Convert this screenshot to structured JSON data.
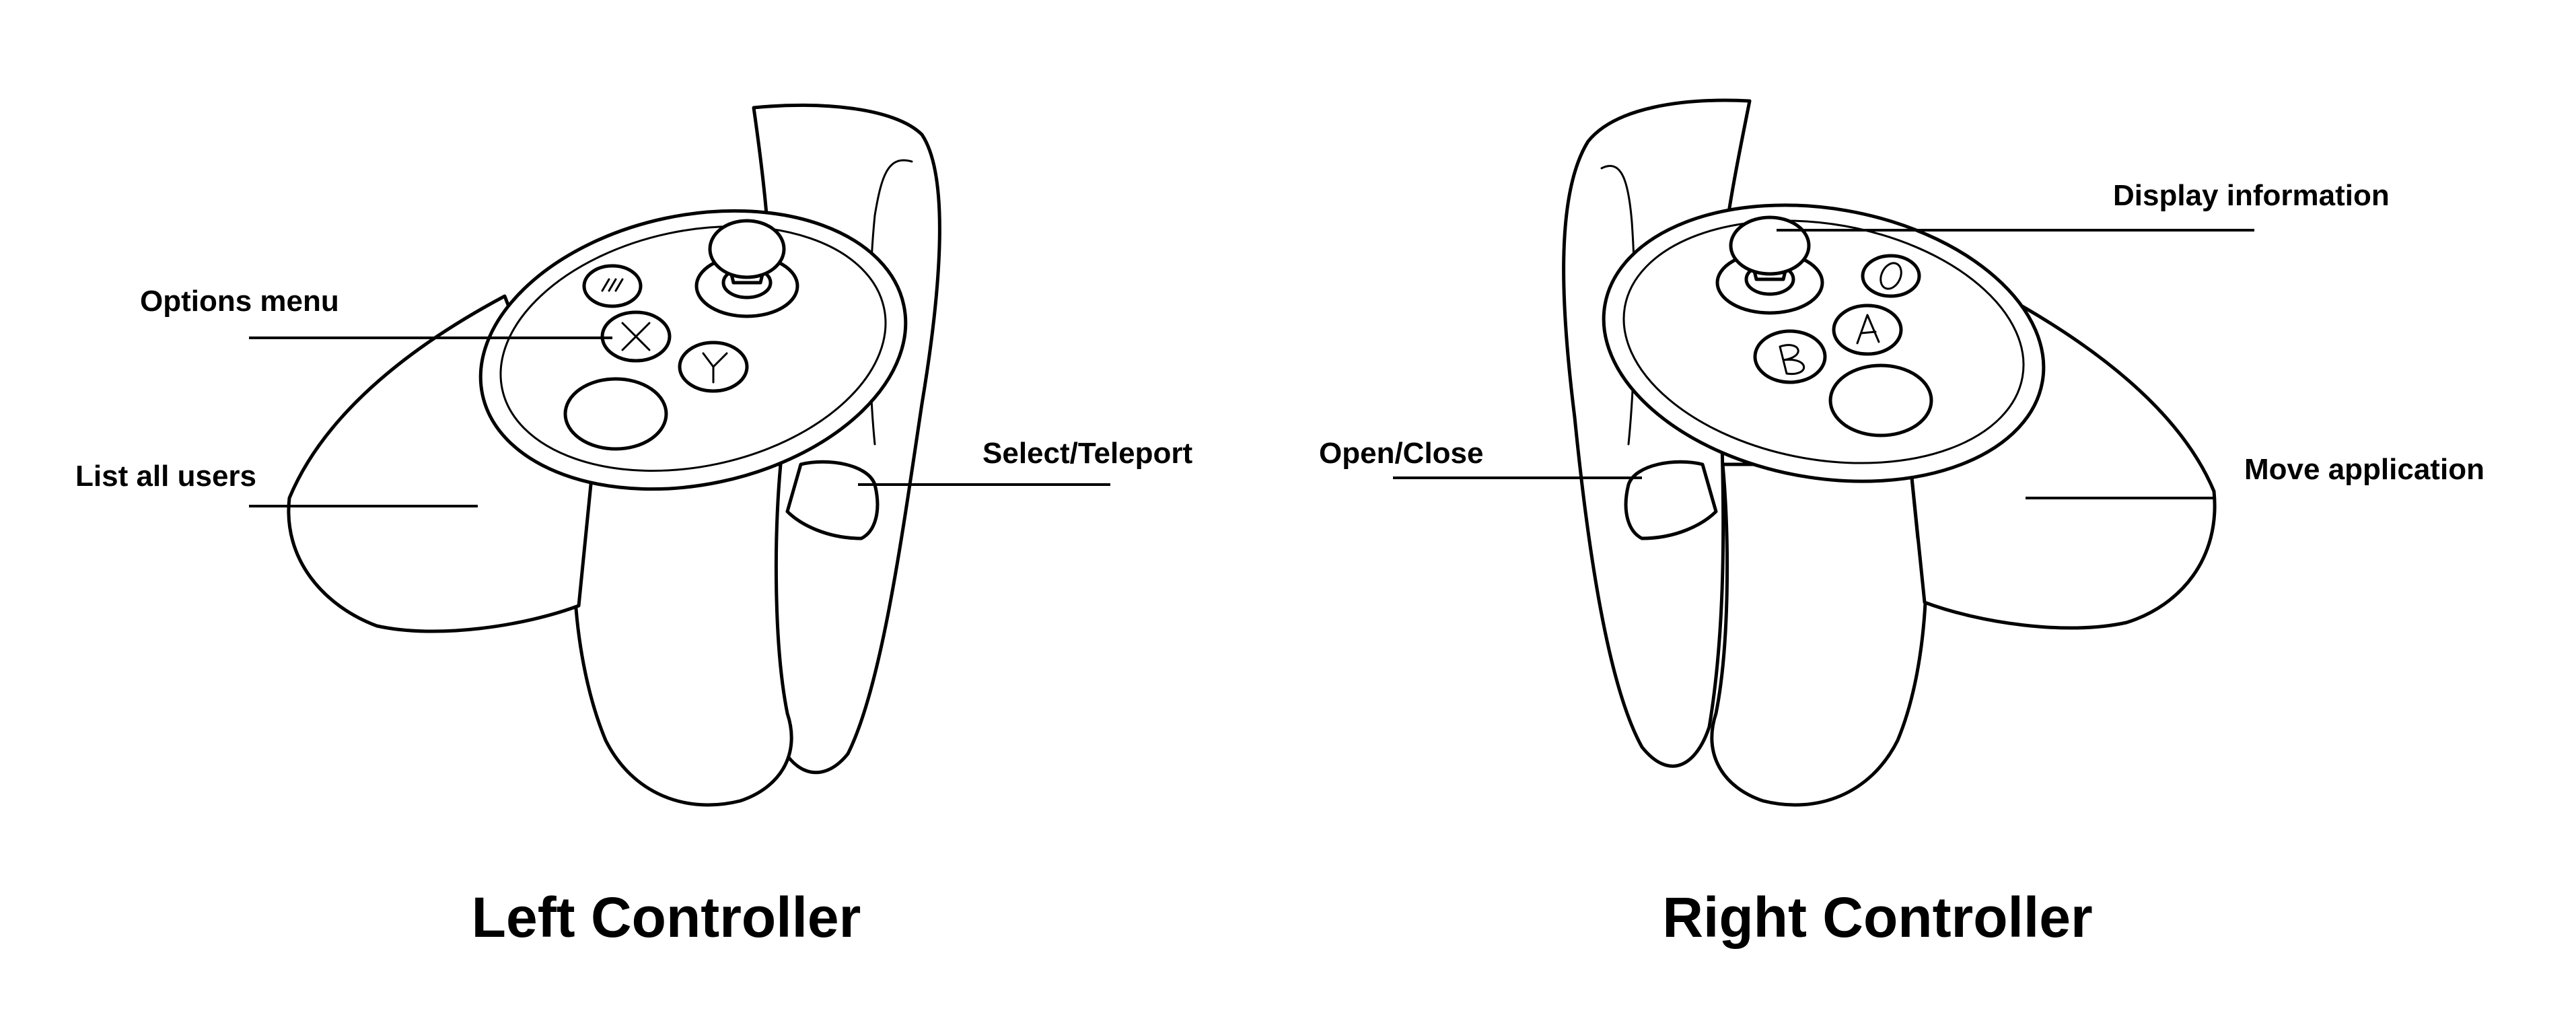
{
  "left_controller": {
    "title": "Left Controller",
    "callouts": {
      "options_menu": "Options menu",
      "list_all_users": "List all users",
      "select_teleport": "Select/Teleport"
    }
  },
  "right_controller": {
    "title": "Right Controller",
    "callouts": {
      "display_information": "Display information",
      "open_close": "Open/Close",
      "move_application": "Move application"
    }
  },
  "colors": {
    "line": "#000000",
    "background": "#ffffff"
  }
}
